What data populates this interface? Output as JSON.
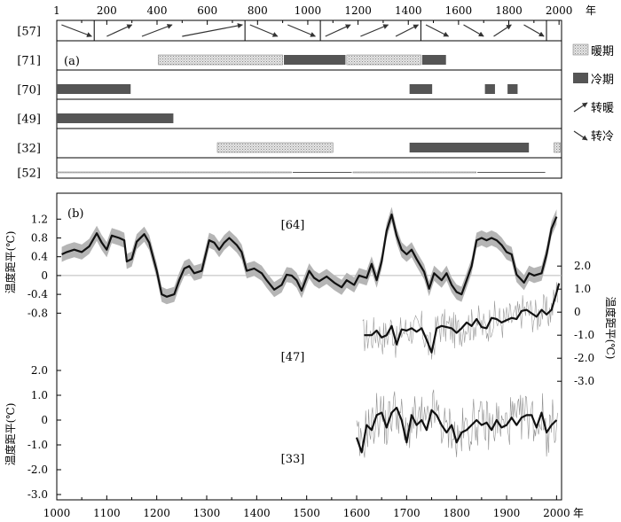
{
  "chart_data": {
    "type": "multi-panel",
    "unit_year": "年",
    "panel_a": {
      "label": "(a)",
      "axis_ticks": [
        1,
        200,
        400,
        600,
        800,
        1000,
        1200,
        1400,
        1600,
        1800,
        2000
      ],
      "xlim": [
        1,
        2010
      ],
      "rows": [
        {
          "id": "[57]",
          "segments": [],
          "dividers": [
            150,
            750,
            1050,
            1450,
            1950
          ],
          "arrows": [
            {
              "start": 20,
              "end": 140,
              "kind": "cooling"
            },
            {
              "start": 200,
              "end": 300,
              "kind": "warming"
            },
            {
              "start": 340,
              "end": 460,
              "kind": "warming"
            },
            {
              "start": 500,
              "end": 740,
              "kind": "warming"
            },
            {
              "start": 770,
              "end": 880,
              "kind": "cooling"
            },
            {
              "start": 920,
              "end": 1030,
              "kind": "cooling"
            },
            {
              "start": 1070,
              "end": 1170,
              "kind": "warming"
            },
            {
              "start": 1210,
              "end": 1320,
              "kind": "warming"
            },
            {
              "start": 1350,
              "end": 1440,
              "kind": "warming"
            },
            {
              "start": 1470,
              "end": 1560,
              "kind": "cooling"
            },
            {
              "start": 1620,
              "end": 1700,
              "kind": "cooling"
            },
            {
              "start": 1740,
              "end": 1810,
              "kind": "warming"
            },
            {
              "start": 1860,
              "end": 1940,
              "kind": "cooling"
            }
          ]
        },
        {
          "id": "[71]",
          "segments": [
            {
              "start": 405,
              "end": 900,
              "kind": "warm"
            },
            {
              "start": 905,
              "end": 1150,
              "kind": "cold"
            },
            {
              "start": 1155,
              "end": 1450,
              "kind": "warm"
            },
            {
              "start": 1455,
              "end": 1550,
              "kind": "cold"
            }
          ]
        },
        {
          "id": "[70]",
          "segments": [
            {
              "start": 1,
              "end": 295,
              "kind": "cold"
            },
            {
              "start": 1405,
              "end": 1495,
              "kind": "cold"
            },
            {
              "start": 1705,
              "end": 1745,
              "kind": "cold"
            },
            {
              "start": 1795,
              "end": 1835,
              "kind": "cold"
            }
          ]
        },
        {
          "id": "[49]",
          "segments": [
            {
              "start": 1,
              "end": 465,
              "kind": "cold"
            }
          ]
        },
        {
          "id": "[32]",
          "segments": [
            {
              "start": 640,
              "end": 1100,
              "kind": "warm"
            },
            {
              "start": 1405,
              "end": 1880,
              "kind": "cold"
            },
            {
              "start": 1980,
              "end": 2005,
              "kind": "warm"
            }
          ]
        },
        {
          "id": "[52]",
          "segments": [
            {
              "start": 1,
              "end": 935,
              "kind": "warm"
            },
            {
              "start": 940,
              "end": 1175,
              "kind": "cold"
            },
            {
              "start": 1180,
              "end": 1670,
              "kind": "warm"
            },
            {
              "start": 1675,
              "end": 1945,
              "kind": "cold"
            }
          ]
        }
      ],
      "legend": [
        {
          "kind": "warm",
          "label": "暖期"
        },
        {
          "kind": "cold",
          "label": "冷期"
        },
        {
          "kind": "warming",
          "label": "转暖"
        },
        {
          "kind": "cooling",
          "label": "转冷"
        }
      ]
    },
    "panel_b": {
      "label": "(b)",
      "xlim": [
        1000,
        2010
      ],
      "x_ticks": [
        1000,
        1100,
        1200,
        1300,
        1400,
        1500,
        1600,
        1700,
        1800,
        1900,
        2000
      ],
      "series_64": {
        "label": "[64]",
        "ylabel": "温度距平(℃)",
        "ylim": [
          -0.85,
          1.45
        ],
        "y_ticks": [
          1.2,
          0.8,
          0.4,
          0,
          -0.4,
          -0.8
        ],
        "x": [
          1010,
          1020,
          1035,
          1050,
          1065,
          1080,
          1090,
          1100,
          1110,
          1125,
          1135,
          1140,
          1150,
          1160,
          1175,
          1185,
          1200,
          1210,
          1220,
          1235,
          1245,
          1255,
          1265,
          1275,
          1290,
          1305,
          1315,
          1325,
          1335,
          1345,
          1360,
          1370,
          1380,
          1395,
          1410,
          1420,
          1435,
          1450,
          1460,
          1470,
          1480,
          1490,
          1505,
          1515,
          1525,
          1540,
          1555,
          1570,
          1580,
          1595,
          1605,
          1620,
          1630,
          1640,
          1650,
          1660,
          1670,
          1680,
          1690,
          1700,
          1710,
          1720,
          1735,
          1745,
          1755,
          1770,
          1780,
          1790,
          1800,
          1810,
          1820,
          1830,
          1840,
          1850,
          1860,
          1870,
          1880,
          1890,
          1900,
          1910,
          1920,
          1935,
          1945,
          1955,
          1970,
          1980,
          1990,
          2000
        ],
        "mean": [
          0.45,
          0.5,
          0.55,
          0.5,
          0.62,
          0.9,
          0.7,
          0.55,
          0.85,
          0.8,
          0.75,
          0.3,
          0.35,
          0.72,
          0.88,
          0.7,
          0.1,
          -0.4,
          -0.45,
          -0.4,
          -0.1,
          0.15,
          0.2,
          0.05,
          0.1,
          0.75,
          0.7,
          0.55,
          0.7,
          0.8,
          0.65,
          0.5,
          0.1,
          0.15,
          0.05,
          -0.1,
          -0.3,
          -0.2,
          0.02,
          0.0,
          -0.1,
          -0.32,
          0.1,
          -0.05,
          -0.12,
          -0.02,
          -0.15,
          -0.25,
          -0.1,
          -0.2,
          0.0,
          -0.05,
          0.25,
          -0.1,
          0.3,
          0.95,
          1.3,
          0.85,
          0.55,
          0.45,
          0.55,
          0.35,
          0.08,
          -0.28,
          0.05,
          -0.1,
          0.05,
          -0.2,
          -0.35,
          -0.4,
          -0.1,
          0.2,
          0.75,
          0.8,
          0.75,
          0.8,
          0.75,
          0.65,
          0.5,
          0.45,
          0.02,
          -0.15,
          0.05,
          0.0,
          0.05,
          0.45,
          1.0,
          1.25
        ],
        "band_halfwidth": 0.16
      },
      "series_47": {
        "label": "[47]",
        "ylabel": "温度距平(℃)",
        "ylim": [
          -3.3,
          2.2
        ],
        "y_ticks": [
          2.0,
          1.0,
          0,
          -1.0,
          -2.0,
          -3.0
        ],
        "x": [
          1615,
          1630,
          1640,
          1650,
          1660,
          1670,
          1680,
          1690,
          1700,
          1710,
          1720,
          1730,
          1740,
          1750,
          1760,
          1770,
          1780,
          1790,
          1800,
          1810,
          1820,
          1830,
          1840,
          1850,
          1860,
          1870,
          1880,
          1890,
          1900,
          1910,
          1920,
          1930,
          1940,
          1950,
          1960,
          1970,
          1980,
          1990,
          2000,
          2005
        ],
        "mean": [
          -1.0,
          -1.0,
          -0.8,
          -1.1,
          -1.0,
          -0.6,
          -1.4,
          -0.75,
          -0.8,
          -0.7,
          -0.85,
          -0.7,
          -1.2,
          -1.75,
          -0.7,
          -0.6,
          -0.65,
          -0.7,
          -0.9,
          -0.7,
          -0.45,
          -0.6,
          -0.3,
          -0.65,
          -0.7,
          -0.25,
          -0.3,
          -0.45,
          -0.35,
          -0.25,
          -0.3,
          0.05,
          0.1,
          -0.05,
          -0.2,
          0.1,
          -0.1,
          0.1,
          0.85,
          1.25
        ]
      },
      "series_33": {
        "label": "[33]",
        "ylabel": "温度距平(℃)",
        "ylim": [
          -3.0,
          2.0
        ],
        "y_ticks": [
          2.0,
          1.0,
          0,
          -1.0,
          -2.0,
          -3.0
        ],
        "x": [
          1600,
          1610,
          1620,
          1630,
          1640,
          1650,
          1660,
          1670,
          1680,
          1690,
          1700,
          1710,
          1720,
          1730,
          1740,
          1750,
          1760,
          1770,
          1780,
          1790,
          1800,
          1810,
          1820,
          1830,
          1840,
          1850,
          1860,
          1870,
          1880,
          1890,
          1900,
          1910,
          1920,
          1930,
          1940,
          1950,
          1960,
          1970,
          1980,
          1990,
          2000
        ],
        "mean": [
          -0.7,
          -1.3,
          -0.2,
          -0.4,
          0.2,
          0.3,
          -0.3,
          0.3,
          0.5,
          0.0,
          -0.9,
          0.2,
          -0.2,
          0.0,
          -0.4,
          0.4,
          0.2,
          -0.2,
          -0.5,
          -0.2,
          -0.9,
          -0.5,
          -0.4,
          -0.2,
          0.0,
          -0.2,
          -0.1,
          -0.4,
          0.0,
          -0.3,
          -0.2,
          0.1,
          -0.2,
          0.1,
          0.2,
          0.2,
          -0.3,
          0.3,
          -0.5,
          -0.2,
          0.0
        ]
      }
    }
  }
}
